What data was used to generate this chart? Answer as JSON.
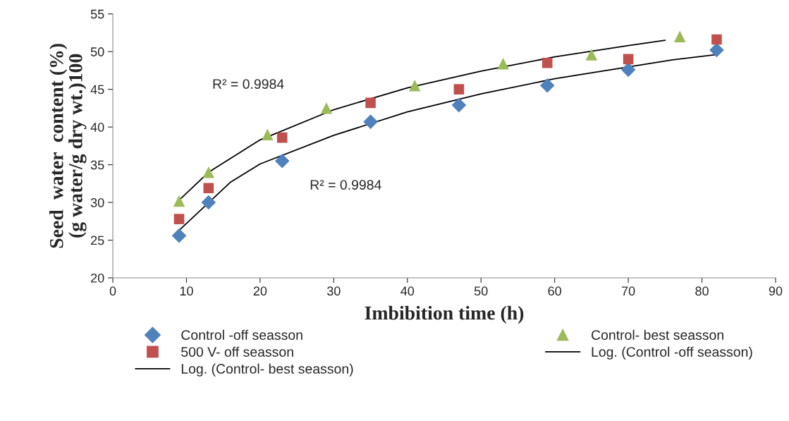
{
  "chart_data": {
    "type": "scatter",
    "xlabel": "Imbibition time (h)",
    "ylabel": "Seed  water  content (%)\n(g water/g dry wt.)100",
    "xlim": [
      0,
      90
    ],
    "xticks": [
      0,
      10,
      20,
      30,
      40,
      50,
      60,
      70,
      80,
      90
    ],
    "ylim": [
      20,
      55
    ],
    "yticks": [
      20,
      25,
      30,
      35,
      40,
      45,
      50,
      55
    ],
    "grid": false,
    "legend": "bottom",
    "series": [
      {
        "name": "Control -off seasson",
        "marker": "diamond",
        "color": "#4f81bd",
        "x": [
          9,
          13,
          23,
          35,
          47,
          59,
          70,
          82
        ],
        "values": [
          25.6,
          30,
          35.5,
          40.7,
          42.9,
          45.5,
          47.6,
          50.2
        ]
      },
      {
        "name": "Control- best seasson",
        "marker": "triangle",
        "color": "#9bbb59",
        "x": [
          9,
          13,
          21,
          29,
          41,
          53,
          65,
          77
        ],
        "values": [
          30.2,
          34,
          39,
          42.5,
          45.5,
          48.4,
          49.6,
          52
        ]
      },
      {
        "name": "500 V- off seasson",
        "marker": "square",
        "color": "#c0504d",
        "x": [
          9,
          13,
          23,
          35,
          47,
          59,
          70,
          82
        ],
        "values": [
          27.8,
          31.9,
          38.6,
          43.2,
          45,
          48.5,
          49,
          51.6
        ]
      },
      {
        "name": "Log. (Control -off seasson)",
        "type": "line",
        "marker": "none",
        "line_style": "solid",
        "color": "#000000",
        "x": [
          9,
          16,
          20,
          30,
          40,
          50,
          60,
          76,
          82
        ],
        "values": [
          26.3,
          32.7,
          35.1,
          38.9,
          42.0,
          44.4,
          46.4,
          48.9,
          49.6
        ]
      },
      {
        "name": "Log. (Control- best seasson)",
        "type": "line",
        "marker": "none",
        "line_style": "solid",
        "color": "#000000",
        "x": [
          9,
          13,
          20,
          30,
          40,
          50,
          60,
          70,
          75
        ],
        "values": [
          30.3,
          34.0,
          38.3,
          42.3,
          45.2,
          47.4,
          49.3,
          50.8,
          51.5
        ]
      }
    ],
    "annotations": [
      "R² = 0.9984",
      "R² = 0.9984"
    ]
  }
}
